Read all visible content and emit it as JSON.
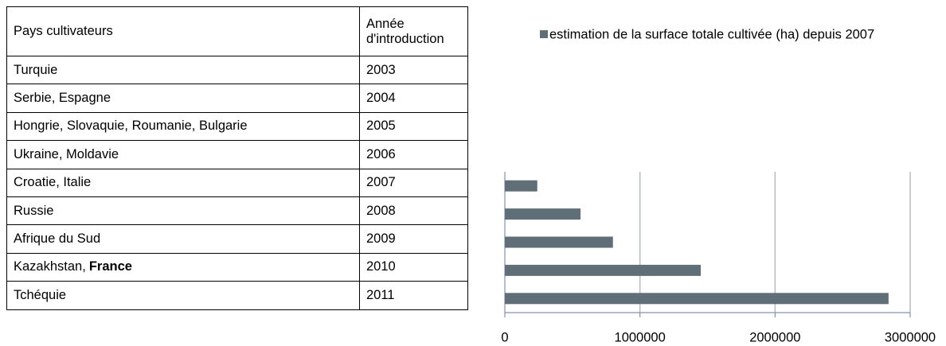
{
  "table": {
    "header": [
      "Pays cultivateurs",
      [
        "Année",
        "d'introduction"
      ]
    ],
    "rows": [
      [
        "Turquie",
        "2003"
      ],
      [
        "Serbie, Espagne",
        "2004"
      ],
      [
        "Hongrie, Slovaquie, Roumanie, Bulgarie",
        "2005"
      ],
      [
        "Ukraine, Moldavie",
        "2006"
      ],
      [
        "Croatie, Italie",
        "2007"
      ],
      [
        "Russie",
        "2008"
      ],
      [
        "Afrique du Sud",
        "2009"
      ],
      [
        [
          "Kazakhstan,",
          "France"
        ],
        "2010"
      ],
      [
        "Tchéquie",
        "2011"
      ]
    ]
  },
  "chart_data": {
    "type": "bar",
    "orientation": "horizontal",
    "categories": [
      null,
      null,
      null,
      null,
      null
    ],
    "series": [
      {
        "name": "estimation de la surface totale cultivée (ha) depuis 2007",
        "color": "#5f6e77",
        "values": [
          240000,
          560000,
          800000,
          1450000,
          2840000
        ]
      }
    ],
    "xlim": [
      0,
      3000000
    ],
    "xticks": [
      0,
      1000000,
      2000000,
      3000000
    ],
    "grid": true,
    "legend": "top"
  }
}
